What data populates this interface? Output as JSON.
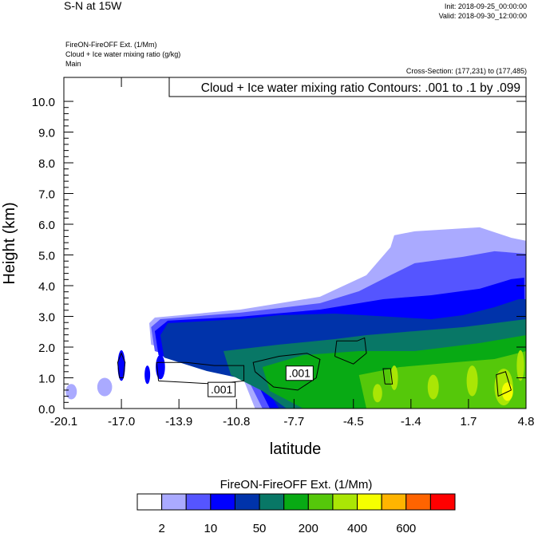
{
  "header": {
    "left_title": "S-N at 15W",
    "init": "Init: 2018-09-25_00:00:00",
    "valid": "Valid: 2018-09-30_12:00:00",
    "field1": "FireON-FireOFF Ext.   (1/Mm)",
    "field2": "Cloud + Ice water mixing ratio   (g/kg)",
    "field3": "Main",
    "cross_section": "Cross-Section: (177,231) to (177,485)"
  },
  "chart_data": {
    "type": "contour",
    "title": "Cloud + Ice water mixing ratio Contours: .001 to .1 by .099",
    "xlabel": "latitude",
    "ylabel": "Height (km)",
    "xlim": [
      -20.1,
      4.8
    ],
    "ylim": [
      0,
      10.78
    ],
    "xticks": [
      "-20.1",
      "-17.0",
      "-13.9",
      "-10.8",
      "-7.7",
      "-4.5",
      "-1.4",
      "1.7",
      "4.8"
    ],
    "xtick_values": [
      -20.1,
      -17.0,
      -13.9,
      -10.8,
      -7.7,
      -4.5,
      -1.4,
      1.7,
      4.8
    ],
    "yticks": [
      "0.0",
      "1.0",
      "2.0",
      "3.0",
      "4.0",
      "5.0",
      "6.0",
      "7.0",
      "8.0",
      "9.0",
      "10.0"
    ],
    "ytick_values": [
      0,
      1,
      2,
      3,
      4,
      5,
      6,
      7,
      8,
      9,
      10
    ],
    "colorbar": {
      "title": "FireON-FireOFF Ext.  (1/Mm)",
      "colors": [
        "#ffffff",
        "#aaaaff",
        "#5555ff",
        "#0000ff",
        "#0033aa",
        "#087766",
        "#08aa14",
        "#55c80a",
        "#aae605",
        "#f5ff00",
        "#ffb400",
        "#ff6400",
        "#ff0000"
      ],
      "labels": [
        "2",
        "10",
        "50",
        "200",
        "400",
        "600"
      ],
      "label_boundaries": [
        1,
        3,
        5,
        7,
        9,
        11
      ]
    },
    "regions": [
      {
        "level": 1,
        "points": [
          [
            -15.5,
            2.78
          ],
          [
            -15.2,
            2.96
          ],
          [
            -10.6,
            3.22
          ],
          [
            -6.3,
            3.64
          ],
          [
            -3.8,
            4.34
          ],
          [
            -2.5,
            5.25
          ],
          [
            -2.3,
            5.64
          ],
          [
            -1.2,
            5.77
          ],
          [
            2.3,
            5.9
          ],
          [
            4.0,
            5.56
          ],
          [
            4.8,
            5.46
          ],
          [
            4.8,
            0
          ],
          [
            -9.8,
            0
          ],
          [
            -10.6,
            1.22
          ],
          [
            -13.2,
            1.66
          ],
          [
            -15.4,
            2.08
          ]
        ]
      },
      {
        "level": 2,
        "points": [
          [
            -15.4,
            2.65
          ],
          [
            -14.9,
            2.91
          ],
          [
            -10.6,
            3.12
          ],
          [
            -6.3,
            3.43
          ],
          [
            -4.2,
            3.82
          ],
          [
            -2.5,
            4.34
          ],
          [
            -1.2,
            4.73
          ],
          [
            1.4,
            4.94
          ],
          [
            3.1,
            5.12
          ],
          [
            4.8,
            5.04
          ],
          [
            4.8,
            0
          ],
          [
            -9.4,
            0
          ],
          [
            -10.3,
            1.09
          ],
          [
            -13.2,
            1.48
          ],
          [
            -15.2,
            1.87
          ]
        ]
      },
      {
        "level": 3,
        "points": [
          [
            -15.2,
            2.52
          ],
          [
            -14.5,
            2.86
          ],
          [
            -10.6,
            2.99
          ],
          [
            -6.3,
            3.22
          ],
          [
            -2.9,
            3.56
          ],
          [
            -0.3,
            3.69
          ],
          [
            2.3,
            3.9
          ],
          [
            4.0,
            4.21
          ],
          [
            4.7,
            4.26
          ],
          [
            4.8,
            0
          ],
          [
            -9.0,
            0
          ],
          [
            -9.8,
            0.96
          ],
          [
            -12.8,
            1.35
          ],
          [
            -15.0,
            1.74
          ]
        ]
      },
      {
        "level": 4,
        "points": [
          [
            -14.9,
            2.39
          ],
          [
            -14.5,
            2.78
          ],
          [
            -10.6,
            2.91
          ],
          [
            -8.5,
            3.04
          ],
          [
            -5.5,
            3.09
          ],
          [
            -0.3,
            2.91
          ],
          [
            1.4,
            3.04
          ],
          [
            3.1,
            3.3
          ],
          [
            4.4,
            3.56
          ],
          [
            4.8,
            3.56
          ],
          [
            4.8,
            0
          ],
          [
            -8.5,
            0
          ],
          [
            -9.4,
            0.83
          ],
          [
            -12.4,
            1.22
          ],
          [
            -14.7,
            1.66
          ]
        ]
      },
      {
        "level": 5,
        "points": [
          [
            -11.5,
            1.87
          ],
          [
            -8.5,
            2.08
          ],
          [
            -5.5,
            2.26
          ],
          [
            -3.8,
            2.39
          ],
          [
            -1.2,
            2.52
          ],
          [
            1.4,
            2.65
          ],
          [
            3.1,
            2.78
          ],
          [
            4.8,
            2.91
          ],
          [
            4.8,
            0
          ],
          [
            -8.1,
            0
          ],
          [
            -9.4,
            0.57
          ],
          [
            -11.1,
            1.09
          ]
        ]
      },
      {
        "level": 6,
        "points": [
          [
            -9.4,
            1.35
          ],
          [
            -7.2,
            1.74
          ],
          [
            -4.2,
            1.87
          ],
          [
            -1.2,
            1.87
          ],
          [
            2.3,
            2.13
          ],
          [
            4.8,
            2.39
          ],
          [
            4.8,
            0
          ],
          [
            -7.2,
            0
          ],
          [
            -9.0,
            0.57
          ]
        ]
      },
      {
        "level": 7,
        "points": [
          [
            -4.2,
            1.09
          ],
          [
            -2.0,
            1.35
          ],
          [
            0.5,
            1.48
          ],
          [
            3.1,
            1.61
          ],
          [
            4.8,
            1.87
          ],
          [
            4.8,
            0
          ],
          [
            -3.8,
            0
          ]
        ]
      }
    ],
    "blobs": [
      {
        "level": 1,
        "lat": -19.7,
        "h": 0.55,
        "rx": 0.3,
        "ry": 0.25
      },
      {
        "level": 1,
        "lat": -17.9,
        "h": 0.7,
        "rx": 0.4,
        "ry": 0.3
      },
      {
        "level": 3,
        "lat": -17.0,
        "h": 1.4,
        "rx": 0.2,
        "ry": 0.5
      },
      {
        "level": 3,
        "lat": -15.6,
        "h": 1.1,
        "rx": 0.15,
        "ry": 0.3
      },
      {
        "level": 3,
        "lat": -14.9,
        "h": 1.35,
        "rx": 0.25,
        "ry": 0.4
      },
      {
        "level": 8,
        "lat": -2.3,
        "h": 1.0,
        "rx": 0.2,
        "ry": 0.4
      },
      {
        "level": 8,
        "lat": -0.2,
        "h": 0.7,
        "rx": 0.3,
        "ry": 0.4
      },
      {
        "level": 8,
        "lat": 1.9,
        "h": 0.9,
        "rx": 0.3,
        "ry": 0.5
      },
      {
        "level": 8,
        "lat": 3.6,
        "h": 0.7,
        "rx": 0.5,
        "ry": 0.6
      },
      {
        "level": 9,
        "lat": 3.8,
        "h": 0.55,
        "rx": 0.3,
        "ry": 0.3
      },
      {
        "level": 8,
        "lat": 4.5,
        "h": 1.4,
        "rx": 0.2,
        "ry": 0.5
      },
      {
        "level": 8,
        "lat": -3.2,
        "h": 0.5,
        "rx": 0.25,
        "ry": 0.3
      }
    ],
    "contours": [
      {
        "value": ".001",
        "points": [
          [
            -17.1,
            1.0
          ],
          [
            -17.2,
            1.5
          ],
          [
            -17.0,
            1.8
          ],
          [
            -16.8,
            1.5
          ],
          [
            -16.9,
            1.0
          ],
          [
            -17.1,
            1.0
          ]
        ]
      },
      {
        "value": ".001",
        "points": [
          [
            -15.0,
            0.9
          ],
          [
            -15.1,
            1.5
          ],
          [
            -13.5,
            1.5
          ],
          [
            -12.0,
            1.4
          ],
          [
            -10.4,
            1.4
          ],
          [
            -10.4,
            0.9
          ],
          [
            -12.0,
            0.8
          ],
          [
            -13.5,
            0.85
          ],
          [
            -15.0,
            0.9
          ]
        ]
      },
      {
        "value": ".001",
        "points": [
          [
            -9.8,
            1.2
          ],
          [
            -9.9,
            1.5
          ],
          [
            -8.5,
            1.7
          ],
          [
            -7.0,
            1.8
          ],
          [
            -6.3,
            1.6
          ],
          [
            -6.5,
            1.0
          ],
          [
            -7.5,
            0.6
          ],
          [
            -8.8,
            0.7
          ],
          [
            -9.8,
            1.2
          ]
        ]
      },
      {
        "value": ".001",
        "points": [
          [
            -5.5,
            1.7
          ],
          [
            -5.4,
            2.2
          ],
          [
            -4.3,
            2.2
          ],
          [
            -3.9,
            2.3
          ],
          [
            -3.8,
            1.8
          ],
          [
            -4.5,
            1.45
          ],
          [
            -5.5,
            1.7
          ]
        ]
      },
      {
        "value": ".001",
        "points": [
          [
            -2.8,
            0.8
          ],
          [
            -2.9,
            1.3
          ],
          [
            -2.5,
            1.3
          ],
          [
            -2.4,
            0.8
          ],
          [
            -2.8,
            0.8
          ]
        ]
      },
      {
        "value": ".001",
        "points": [
          [
            3.3,
            0.4
          ],
          [
            3.2,
            1.1
          ],
          [
            3.7,
            1.2
          ],
          [
            4.0,
            0.6
          ],
          [
            3.3,
            0.4
          ]
        ]
      }
    ],
    "contour_labels": [
      {
        "text": ".001",
        "lat": -11.6,
        "h": 0.62
      },
      {
        "text": ".001",
        "lat": -7.4,
        "h": 1.15
      }
    ]
  }
}
